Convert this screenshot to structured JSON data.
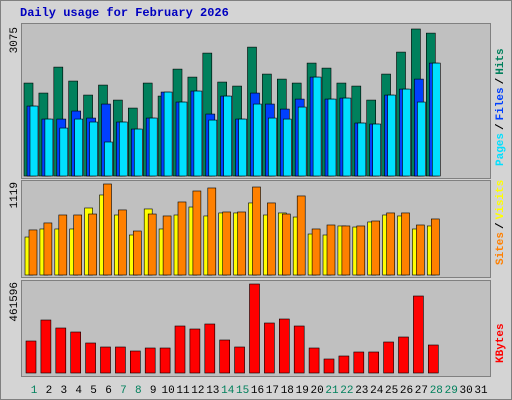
{
  "chart_data": [
    {
      "type": "bar",
      "title": "Daily usage for February 2026",
      "legend_separator": "/",
      "ylim": [
        0,
        3075
      ],
      "yticks": [
        3075
      ],
      "grid": false,
      "series": [
        {
          "name": "Hits",
          "color": "#00805c",
          "values": [
            1944,
            1735,
            2278,
            1986,
            1693,
            1902,
            1588,
            1421,
            1944,
            1672,
            2236,
            2069,
            2571,
            1965,
            1881,
            2696,
            2132,
            2027,
            1944,
            2362,
            2257,
            1944,
            1881,
            1588,
            2132,
            2592,
            3075,
            2989,
            null,
            null,
            null
          ]
        },
        {
          "name": "Files",
          "color": "#0040ff",
          "values": [
            1463,
            1191,
            1191,
            1359,
            1212,
            1505,
            1129,
            982,
            1212,
            1756,
            1547,
            1777,
            1296,
            1672,
            1191,
            1735,
            1505,
            1400,
            1609,
            2069,
            1609,
            1630,
            1108,
            1087,
            1693,
            1818,
            2027,
            2362,
            null,
            null,
            null
          ]
        },
        {
          "name": "Pages",
          "color": "#00e0ff",
          "values": [
            1463,
            1191,
            1003,
            1191,
            1129,
            711,
            1129,
            982,
            1212,
            1756,
            1547,
            1777,
            1170,
            1672,
            1191,
            1505,
            1212,
            1191,
            1442,
            2069,
            1609,
            1630,
            1108,
            1087,
            1693,
            1818,
            1547,
            2362,
            null,
            null,
            null
          ]
        }
      ]
    },
    {
      "type": "bar",
      "legend_separator": "/",
      "ylim": [
        0,
        1119
      ],
      "yticks": [
        1119
      ],
      "grid": false,
      "series": [
        {
          "name": "Visits",
          "color": "#ffff00",
          "values": [
            467,
            566,
            566,
            566,
            824,
            984,
            738,
            492,
            812,
            566,
            738,
            836,
            726,
            763,
            763,
            886,
            738,
            763,
            713,
            504,
            492,
            603,
            590,
            652,
            738,
            726,
            566,
            603,
            null,
            null,
            null
          ]
        },
        {
          "name": "Sites",
          "color": "#ff8000",
          "values": [
            554,
            640,
            738,
            738,
            750,
            1119,
            800,
            541,
            750,
            726,
            898,
            1033,
            1070,
            775,
            775,
            1082,
            886,
            750,
            972,
            566,
            615,
            603,
            603,
            664,
            763,
            763,
            615,
            689,
            null,
            null,
            null
          ]
        }
      ]
    },
    {
      "type": "bar",
      "legend_separator": "/",
      "ylim": [
        0,
        461596
      ],
      "yticks": [
        461596
      ],
      "grid": false,
      "categories": [
        "1",
        "2",
        "3",
        "4",
        "5",
        "6",
        "7",
        "8",
        "9",
        "10",
        "11",
        "12",
        "13",
        "14",
        "15",
        "16",
        "17",
        "18",
        "19",
        "20",
        "21",
        "22",
        "23",
        "24",
        "25",
        "26",
        "27",
        "28",
        "29",
        "30",
        "31"
      ],
      "category_colors": [
        "#00805c",
        "#000000",
        "#000000",
        "#000000",
        "#000000",
        "#000000",
        "#00805c",
        "#00805c",
        "#000000",
        "#000000",
        "#000000",
        "#000000",
        "#000000",
        "#00805c",
        "#00805c",
        "#000000",
        "#000000",
        "#000000",
        "#000000",
        "#000000",
        "#00805c",
        "#00805c",
        "#000000",
        "#000000",
        "#000000",
        "#000000",
        "#000000",
        "#00805c",
        "#00805c",
        "#000000",
        "#000000"
      ],
      "series": [
        {
          "name": "KBytes",
          "color": "#ff0000",
          "values": [
            165952,
            274858,
            233370,
            212626,
            155580,
            134836,
            134836,
            114092,
            129650,
            129650,
            243742,
            228184,
            254114,
            171138,
            134836,
            461596,
            259300,
            280044,
            243742,
            129650,
            72604,
            88162,
            108906,
            108906,
            160766,
            186696,
            399322,
            145208,
            null,
            null,
            null
          ]
        }
      ]
    }
  ]
}
